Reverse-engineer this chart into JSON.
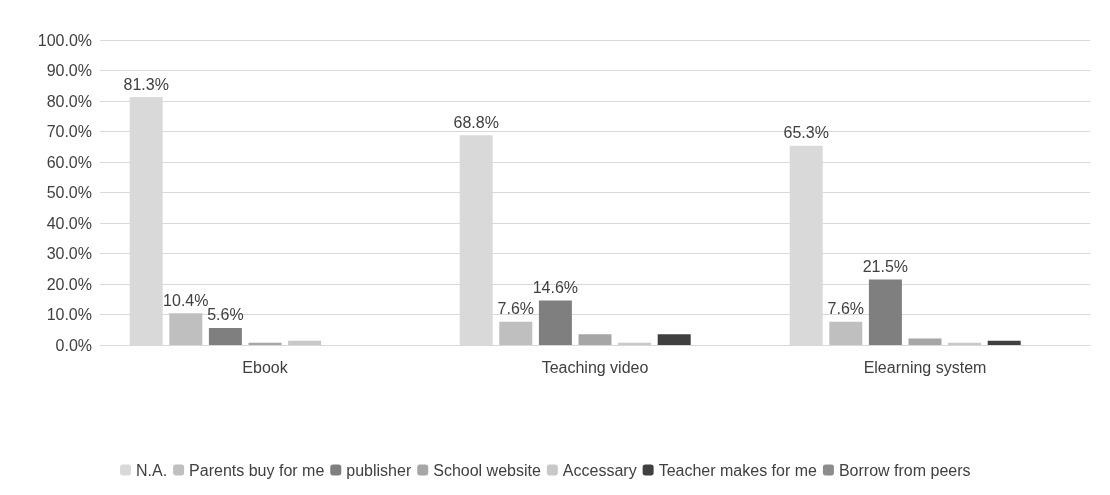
{
  "chart_data": {
    "type": "bar",
    "categories": [
      "Ebook",
      "Teaching video",
      "Elearning system"
    ],
    "series": [
      {
        "name": "N.A.",
        "color": "#d9d9d9",
        "values": [
          81.3,
          68.8,
          65.3
        ],
        "value_labels": [
          "81.3%",
          "68.8%",
          "65.3%"
        ]
      },
      {
        "name": "Parents buy for me",
        "color": "#bfbfbf",
        "values": [
          10.4,
          7.6,
          7.6
        ],
        "value_labels": [
          "10.4%",
          "7.6%",
          "7.6%"
        ]
      },
      {
        "name": "publisher",
        "color": "#7f7f7f",
        "values": [
          5.6,
          14.6,
          21.5
        ],
        "value_labels": [
          "5.6%",
          "14.6%",
          "21.5%"
        ]
      },
      {
        "name": "School website",
        "color": "#a6a6a6",
        "values": [
          0.7,
          3.5,
          2.1
        ]
      },
      {
        "name": "Accessary",
        "color": "#c8c8c8",
        "values": [
          1.4,
          0.7,
          0.7
        ]
      },
      {
        "name": "Teacher makes for me",
        "color": "#404040",
        "values": [
          0,
          3.5,
          1.4
        ]
      },
      {
        "name": "Borrow from peers",
        "color": "#8c8c8c",
        "values": [
          0,
          0,
          0
        ]
      }
    ],
    "ylim": [
      0,
      100
    ],
    "yticks": [
      {
        "value": 0,
        "label": "0.0%"
      },
      {
        "value": 10,
        "label": "10.0%"
      },
      {
        "value": 20,
        "label": "20.0%"
      },
      {
        "value": 30,
        "label": "30.0%"
      },
      {
        "value": 40,
        "label": "40.0%"
      },
      {
        "value": 50,
        "label": "50.0%"
      },
      {
        "value": 60,
        "label": "60.0%"
      },
      {
        "value": 70,
        "label": "70.0%"
      },
      {
        "value": 80,
        "label": "80.0%"
      },
      {
        "value": 90,
        "label": "90.0%"
      },
      {
        "value": 100,
        "label": "100.0%"
      }
    ],
    "grid": "y",
    "legend": "bottom"
  }
}
